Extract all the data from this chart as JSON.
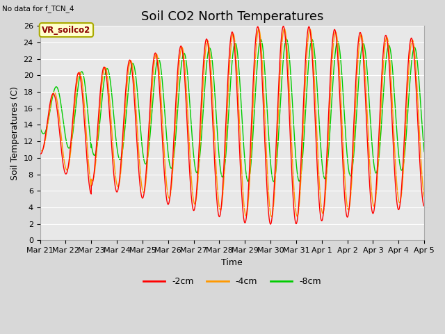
{
  "title": "Soil CO2 North Temperatures",
  "no_data_label": "No data for f_TCN_4",
  "ylabel": "Soil Temperatures (C)",
  "xlabel": "Time",
  "legend_box_label": "VR_soilco2",
  "xtick_labels": [
    "Mar 21",
    "Mar 22",
    "Mar 23",
    "Mar 24",
    "Mar 25",
    "Mar 26",
    "Mar 27",
    "Mar 28",
    "Mar 29",
    "Mar 30",
    "Mar 31",
    "Apr 1",
    "Apr 2",
    "Apr 3",
    "Apr 4",
    "Apr 5"
  ],
  "colors": {
    "2cm": "#FF0000",
    "4cm": "#FF9900",
    "8cm": "#00CC00"
  },
  "legend_labels": [
    "-2cm",
    "-4cm",
    "-8cm"
  ],
  "plot_bg_color": "#E8E8E8",
  "fig_bg_color": "#D8D8D8",
  "grid_color": "#FFFFFF",
  "title_fontsize": 13,
  "axis_fontsize": 9,
  "tick_fontsize": 8,
  "ylim": [
    0,
    26
  ],
  "yticks": [
    0,
    2,
    4,
    6,
    8,
    10,
    12,
    14,
    16,
    18,
    20,
    22,
    24,
    26
  ]
}
